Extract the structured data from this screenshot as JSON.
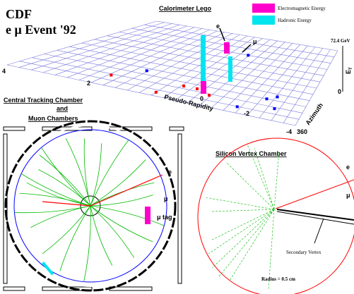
{
  "title": {
    "line1": "CDF",
    "line2": "e μ Event '92"
  },
  "lego": {
    "title": "Calorimeter Lego",
    "legend": [
      "Electromagnetic Energy",
      "Hadronic Energy"
    ],
    "scale": "72.4 GeV",
    "z_label": "E",
    "z_sub": "T",
    "x_label": "Pseudo-Rapidity",
    "x_ticks": [
      "4",
      "2",
      "0",
      "-2",
      "-4"
    ],
    "y_label": "Azimuth",
    "y_ticks": [
      "0",
      "360"
    ],
    "particles": [
      "e",
      "μ"
    ]
  },
  "tracking": {
    "title": [
      "Central Tracking Chamber",
      "and",
      "Muon Chambers"
    ],
    "particles": [
      "e",
      "μ",
      "μ tag"
    ]
  },
  "svx": {
    "title": "Silicon Vertex Chamber",
    "particles": [
      "e",
      "μ"
    ],
    "annotation": "Secondary Vertex",
    "radius": "Radius = 0.5 cm"
  }
}
